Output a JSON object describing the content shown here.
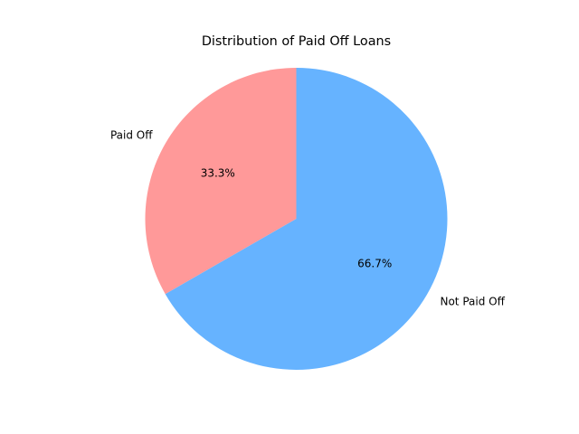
{
  "chart_data": {
    "type": "pie",
    "title": "Distribution of Paid Off Loans",
    "categories": [
      "Paid Off",
      "Not Paid Off"
    ],
    "values": [
      33.3,
      66.7
    ],
    "pct_labels": [
      "33.3%",
      "66.7%"
    ],
    "colors": [
      "#ff9999",
      "#66b3ff"
    ],
    "start_angle_deg": 90,
    "direction": "counterclockwise",
    "legend": "none"
  }
}
